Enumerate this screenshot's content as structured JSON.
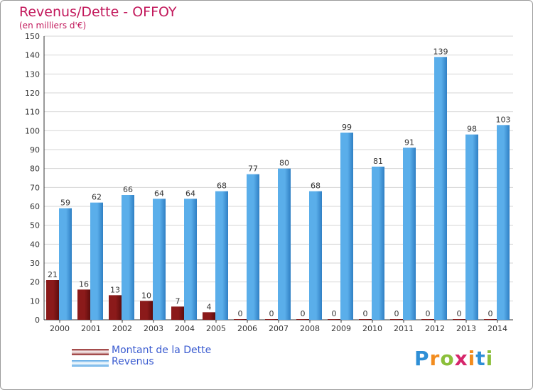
{
  "header": {
    "title": "Revenus/Dette - OFFOY",
    "subtitle": "(en milliers d'€)"
  },
  "legend": {
    "debt_label": "Montant de la Dette",
    "revenue_label": "Revenus"
  },
  "logo": {
    "text": "Proxiti",
    "letters": [
      "P",
      "r",
      "o",
      "x",
      "i",
      "t",
      "i"
    ],
    "colors": [
      "#2e8fd6",
      "#f28c1e",
      "#8bbf3a",
      "#d6266b",
      "#f28c1e",
      "#2e8fd6",
      "#8bbf3a"
    ]
  },
  "colors": {
    "debt": "#8b1a1a",
    "revenue": "#4ea2e4",
    "title": "#c2185b",
    "legend_text": "#3a5bd0"
  },
  "chart_data": {
    "type": "bar",
    "categories": [
      "2000",
      "2001",
      "2002",
      "2003",
      "2004",
      "2005",
      "2006",
      "2007",
      "2008",
      "2009",
      "2010",
      "2011",
      "2012",
      "2013",
      "2014"
    ],
    "series": [
      {
        "name": "Montant de la Dette",
        "values": [
          21,
          16,
          13,
          10,
          7,
          4,
          0,
          0,
          0,
          0,
          0,
          0,
          0,
          0,
          0
        ]
      },
      {
        "name": "Revenus",
        "values": [
          59,
          62,
          66,
          64,
          64,
          68,
          77,
          80,
          68,
          99,
          81,
          91,
          139,
          98,
          103
        ]
      }
    ],
    "yticks": [
      0,
      10,
      20,
      30,
      40,
      50,
      60,
      70,
      80,
      90,
      100,
      110,
      120,
      130,
      140,
      150
    ],
    "ylim": [
      0,
      150
    ],
    "grid": true,
    "legend_position": "bottom-left"
  }
}
